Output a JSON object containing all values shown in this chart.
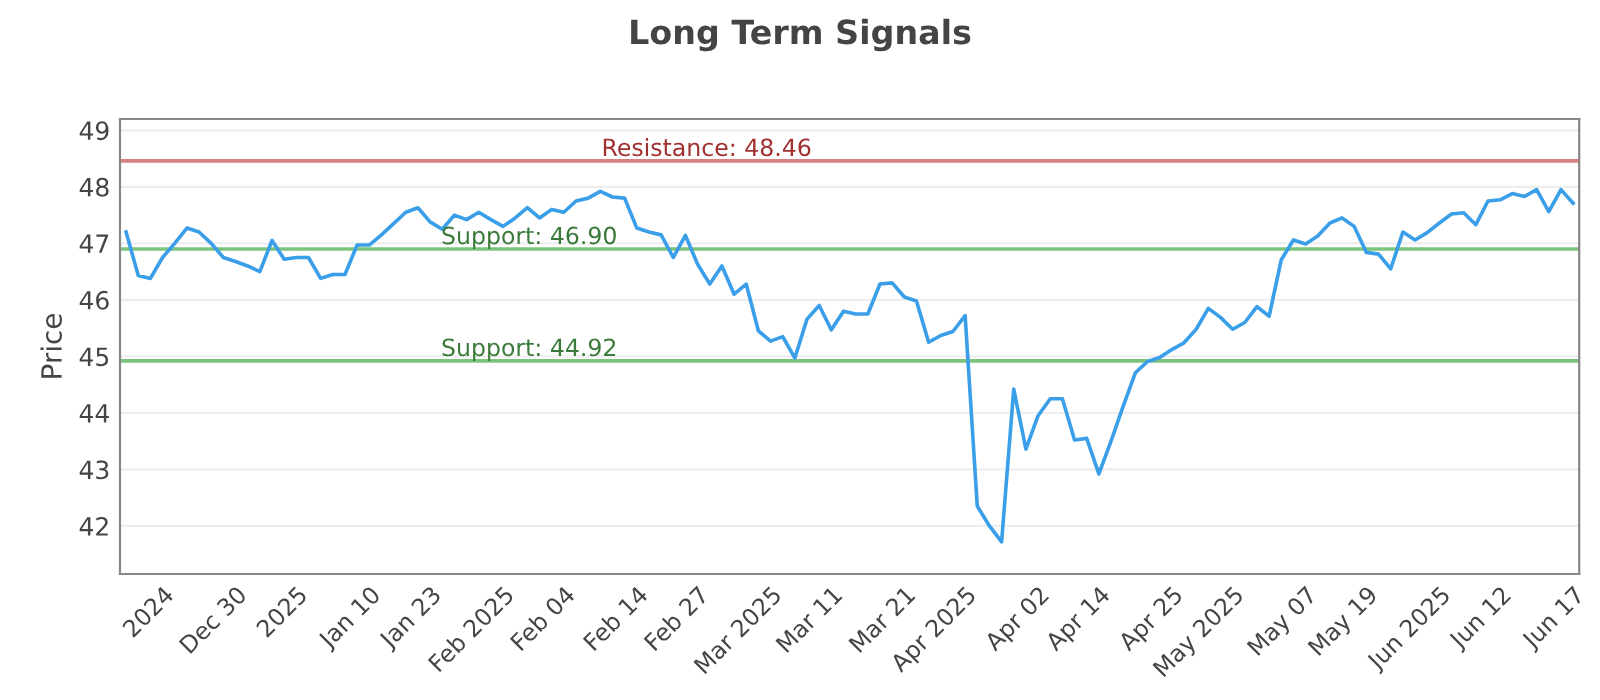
{
  "chart_data": {
    "type": "line",
    "title": "Long Term Signals",
    "ylabel": "Price",
    "categories": [
      null,
      null,
      null,
      "2024",
      null,
      null,
      null,
      null,
      null,
      "Dec 30",
      null,
      null,
      null,
      null,
      "2025",
      null,
      null,
      null,
      null,
      null,
      "Jan 10",
      null,
      null,
      null,
      null,
      "Jan 23",
      null,
      null,
      null,
      null,
      null,
      "Feb 2025",
      null,
      null,
      null,
      null,
      "Feb 04",
      null,
      null,
      null,
      null,
      null,
      "Feb 14",
      null,
      null,
      null,
      null,
      "Feb 27",
      null,
      null,
      null,
      null,
      null,
      "Mar 2025",
      null,
      null,
      null,
      null,
      "Mar 11",
      null,
      null,
      null,
      null,
      null,
      "Mar 21",
      null,
      null,
      null,
      null,
      "Apr 2025",
      null,
      null,
      null,
      null,
      null,
      "Apr 02",
      null,
      null,
      null,
      null,
      "Apr 14",
      null,
      null,
      null,
      null,
      null,
      "Apr 25",
      null,
      null,
      null,
      null,
      "May 2025",
      null,
      null,
      null,
      null,
      null,
      "May 07",
      null,
      null,
      null,
      null,
      "May 19",
      null,
      null,
      null,
      null,
      null,
      "Jun 2025",
      null,
      null,
      null,
      null,
      "Jun 12",
      null,
      null,
      null,
      null,
      null,
      "Jun 17"
    ],
    "series": [
      {
        "color": "#3a9fe8",
        "values": [
          47.2,
          46.43,
          46.38,
          46.75,
          47.0,
          47.27,
          47.2,
          47.0,
          46.75,
          46.68,
          46.6,
          46.5,
          47.05,
          46.72,
          46.75,
          46.75,
          46.38,
          46.45,
          46.45,
          46.97,
          46.97,
          47.15,
          47.35,
          47.55,
          47.63,
          47.38,
          47.25,
          47.5,
          47.42,
          47.55,
          47.42,
          47.3,
          47.45,
          47.63,
          47.45,
          47.6,
          47.55,
          47.75,
          47.8,
          47.92,
          47.82,
          47.8,
          47.27,
          47.2,
          47.15,
          46.75,
          47.14,
          46.63,
          46.28,
          46.6,
          46.1,
          46.28,
          45.45,
          45.27,
          45.35,
          44.97,
          45.66,
          45.9,
          45.47,
          45.8,
          45.75,
          45.75,
          46.28,
          46.3,
          46.05,
          45.98,
          45.25,
          45.37,
          45.44,
          45.72,
          42.35,
          42.0,
          41.72,
          44.42,
          43.36,
          43.95,
          44.25,
          44.25,
          43.52,
          43.55,
          42.92,
          43.5,
          44.12,
          44.71,
          44.91,
          44.98,
          45.12,
          45.24,
          45.48,
          45.85,
          45.69,
          45.48,
          45.6,
          45.88,
          45.71,
          46.71,
          47.06,
          46.99,
          47.13,
          47.36,
          47.45,
          47.3,
          46.84,
          46.81,
          46.55,
          47.2,
          47.06,
          47.19,
          47.36,
          47.52,
          47.54,
          47.33,
          47.75,
          47.77,
          47.88,
          47.83,
          47.95,
          47.56,
          47.95,
          47.71
        ]
      }
    ],
    "ylim": [
      41.15,
      49.2
    ],
    "yticks": [
      42,
      43,
      44,
      45,
      46,
      47,
      48,
      49
    ],
    "grid": "y",
    "ref_lines": [
      {
        "axis": "y",
        "value": 48.46,
        "label": "Resistance: 48.46",
        "color": "#d98080"
      },
      {
        "axis": "y",
        "value": 46.9,
        "label": "Support: 46.90",
        "color": "#7cc47c"
      },
      {
        "axis": "y",
        "value": 44.92,
        "label": "Support: 44.92",
        "color": "#7cc47c"
      }
    ]
  }
}
